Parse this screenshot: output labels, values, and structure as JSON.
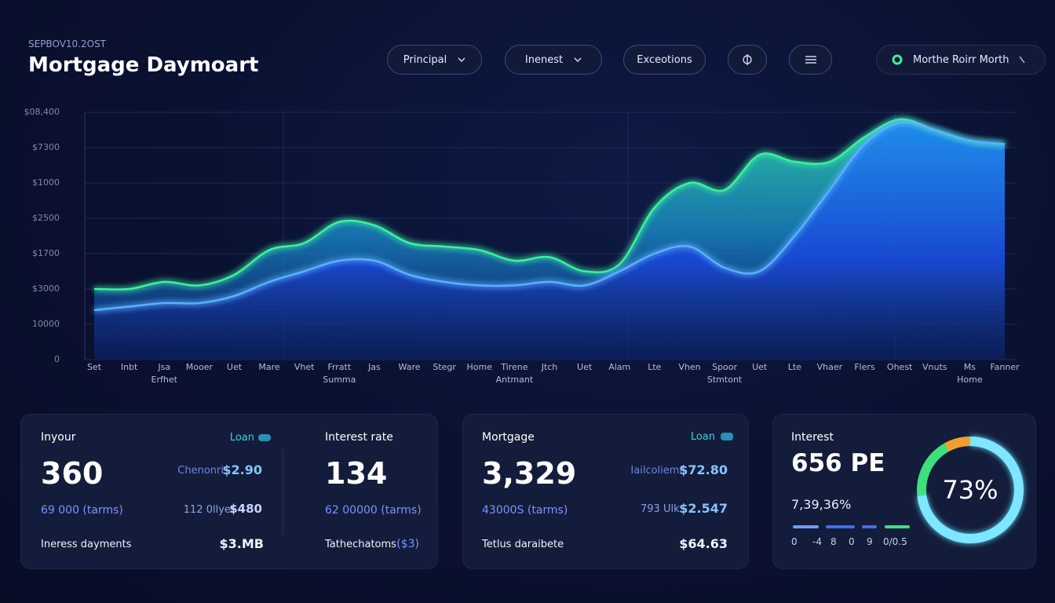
{
  "header": {
    "subtitle": "SEPBOV10.2OST",
    "title": "Mortgage Daymoart"
  },
  "toolbar": {
    "buttons": [
      "Principal",
      "Inenest",
      "Exceotions"
    ],
    "account": "Morthe Roirr Morth"
  },
  "chart_data": [
    {
      "type": "area",
      "categories": [
        "Set",
        "Inbt",
        "Jsa",
        "Mooer",
        "Uet",
        "Mare",
        "Vhet",
        "Frratt",
        "Jas",
        "Ware",
        "Stegr",
        "Home",
        "Tirene",
        "Jtch",
        "Uet",
        "Alam",
        "Lte",
        "Vhen",
        "Spoor",
        "Uet",
        "Lte",
        "Vhaer",
        "Flers",
        "Ohest",
        "Vnuts",
        "Ms",
        "Fanner"
      ],
      "category_sublabels": [
        null,
        null,
        "Erfhet",
        null,
        null,
        null,
        null,
        "Summa",
        null,
        null,
        null,
        null,
        "Antmant",
        null,
        null,
        null,
        null,
        null,
        "Stmtont",
        null,
        null,
        null,
        null,
        null,
        null,
        "Home",
        null
      ],
      "series": [
        {
          "color": "#3ef0a0",
          "values": [
            2.0,
            2.0,
            2.2,
            2.1,
            2.4,
            3.1,
            3.3,
            3.9,
            3.8,
            3.3,
            3.2,
            3.1,
            2.8,
            2.9,
            2.5,
            2.7,
            4.3,
            5.0,
            4.8,
            5.8,
            5.6,
            5.6,
            6.3,
            6.8,
            6.5,
            6.2,
            6.1
          ]
        },
        {
          "color": "#5ab0ff",
          "values": [
            1.4,
            1.5,
            1.6,
            1.6,
            1.8,
            2.2,
            2.5,
            2.8,
            2.8,
            2.4,
            2.2,
            2.1,
            2.1,
            2.2,
            2.1,
            2.5,
            3.0,
            3.2,
            2.6,
            2.5,
            3.5,
            4.8,
            6.1,
            6.7,
            6.5,
            6.2,
            6.1
          ]
        }
      ],
      "ylim": [
        0,
        7
      ],
      "yticks": [
        0,
        {
          "value": 1,
          "label": "10000"
        },
        {
          "value": 2,
          "label": "$3000"
        },
        {
          "value": 3,
          "label": "$1700"
        },
        {
          "value": 4,
          "label": "$2500"
        },
        {
          "value": 5,
          "label": "$1000"
        },
        {
          "value": 6,
          "label": "$7300"
        },
        {
          "value": 7,
          "label": "$08,400"
        }
      ],
      "grid": true
    },
    {
      "type": "donut",
      "values": [
        73
      ],
      "value_labels": [
        "73%"
      ],
      "color": "#7fe6ff"
    }
  ],
  "cards": [
    {
      "title": "Inyour",
      "badge": "Loan",
      "value": "360",
      "detail_label": "Chenonri",
      "detail_value": "$2.90",
      "sub": "69 000 (tarms)",
      "sub2_label": "112 0llyet",
      "sub2_value": "$480",
      "foot_label": "Ineress dayments",
      "foot_value": "$3.MB",
      "right": {
        "title": "Interest rate",
        "value": "134",
        "sub": "62 00000 (tarms)",
        "foot_label": "Tathechatoms",
        "foot_value": "($3)"
      }
    },
    {
      "title": "Mortgage",
      "badge": "Loan",
      "value": "3,329",
      "detail_label": "Iailcoliemf",
      "detail_value": "$72.80",
      "sub": "43000S (tarms)",
      "sub2_label": "793 Ulk:",
      "sub2_value": "$2.547",
      "foot_label": "Tetlus daraibete",
      "foot_value": "$64.63"
    },
    {
      "title": "Interest",
      "value": "656 PE",
      "sub": "7,39,36%",
      "scale": [
        "0",
        "-4",
        "8",
        "0",
        "9",
        "0/0.5"
      ]
    }
  ]
}
